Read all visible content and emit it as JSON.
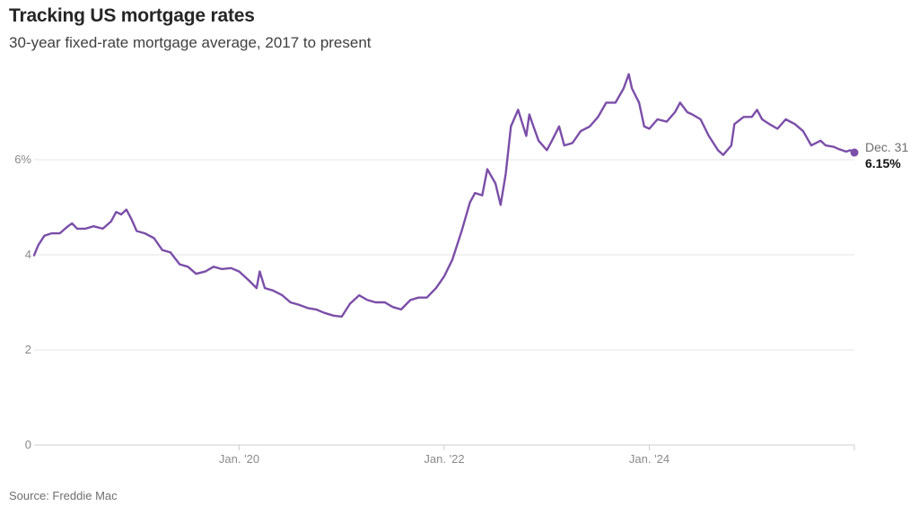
{
  "header": {
    "title": "Tracking US mortgage rates",
    "subtitle": "30-year fixed-rate mortgage average, 2017 to present"
  },
  "footer": {
    "source": "Source: Freddie Mac"
  },
  "colors": {
    "line": "#7b4ea8",
    "grid": "#e6e6e6",
    "axis": "#cfcfcf"
  },
  "chart_data": {
    "type": "line",
    "title": "Tracking US mortgage rates",
    "subtitle": "30-year fixed-rate mortgage average, 2017 to present",
    "xlabel": "",
    "ylabel": "",
    "xlim": [
      2018.0,
      2026.0
    ],
    "ylim": [
      0,
      8
    ],
    "y_ticks": [
      {
        "value": 0,
        "label": "0"
      },
      {
        "value": 2,
        "label": "2"
      },
      {
        "value": 4,
        "label": "4"
      },
      {
        "value": 6,
        "label": "6%"
      }
    ],
    "x_ticks": [
      {
        "value": 2020.0,
        "label": "Jan. '20"
      },
      {
        "value": 2022.0,
        "label": "Jan. '22"
      },
      {
        "value": 2024.0,
        "label": "Jan. '24"
      }
    ],
    "grid": true,
    "legend": "none",
    "series": [
      {
        "name": "30-year fixed-rate mortgage average",
        "x": [
          2018.0,
          2018.04,
          2018.1,
          2018.17,
          2018.25,
          2018.33,
          2018.37,
          2018.42,
          2018.5,
          2018.58,
          2018.67,
          2018.75,
          2018.8,
          2018.85,
          2018.9,
          2018.95,
          2019.0,
          2019.08,
          2019.17,
          2019.25,
          2019.33,
          2019.42,
          2019.5,
          2019.58,
          2019.67,
          2019.75,
          2019.83,
          2019.92,
          2020.0,
          2020.1,
          2020.17,
          2020.2,
          2020.25,
          2020.33,
          2020.42,
          2020.5,
          2020.58,
          2020.67,
          2020.75,
          2020.83,
          2020.92,
          2021.0,
          2021.08,
          2021.17,
          2021.25,
          2021.33,
          2021.42,
          2021.5,
          2021.58,
          2021.67,
          2021.75,
          2021.83,
          2021.92,
          2022.0,
          2022.08,
          2022.17,
          2022.25,
          2022.3,
          2022.37,
          2022.42,
          2022.5,
          2022.55,
          2022.6,
          2022.65,
          2022.72,
          2022.8,
          2022.83,
          2022.87,
          2022.92,
          2023.0,
          2023.05,
          2023.12,
          2023.17,
          2023.25,
          2023.33,
          2023.42,
          2023.5,
          2023.58,
          2023.67,
          2023.75,
          2023.8,
          2023.83,
          2023.9,
          2023.95,
          2024.0,
          2024.08,
          2024.17,
          2024.25,
          2024.3,
          2024.37,
          2024.42,
          2024.5,
          2024.58,
          2024.67,
          2024.72,
          2024.8,
          2024.83,
          2024.92,
          2025.0,
          2025.05,
          2025.1,
          2025.17,
          2025.25,
          2025.33,
          2025.42,
          2025.5,
          2025.58,
          2025.67,
          2025.72,
          2025.8,
          2025.85,
          2025.92,
          2025.96,
          2026.0
        ],
        "values": [
          3.99,
          4.2,
          4.4,
          4.45,
          4.45,
          4.6,
          4.66,
          4.55,
          4.55,
          4.6,
          4.55,
          4.7,
          4.9,
          4.85,
          4.95,
          4.75,
          4.5,
          4.45,
          4.35,
          4.1,
          4.05,
          3.8,
          3.75,
          3.6,
          3.65,
          3.75,
          3.7,
          3.72,
          3.65,
          3.45,
          3.3,
          3.65,
          3.3,
          3.25,
          3.15,
          3.0,
          2.95,
          2.88,
          2.85,
          2.78,
          2.72,
          2.7,
          2.97,
          3.15,
          3.05,
          3.0,
          3.0,
          2.9,
          2.85,
          3.05,
          3.1,
          3.1,
          3.3,
          3.55,
          3.9,
          4.5,
          5.1,
          5.3,
          5.25,
          5.8,
          5.5,
          5.05,
          5.7,
          6.7,
          7.05,
          6.5,
          6.95,
          6.7,
          6.4,
          6.2,
          6.4,
          6.7,
          6.3,
          6.35,
          6.6,
          6.7,
          6.9,
          7.2,
          7.2,
          7.5,
          7.8,
          7.5,
          7.2,
          6.7,
          6.65,
          6.85,
          6.8,
          7.0,
          7.2,
          7.0,
          6.95,
          6.85,
          6.5,
          6.2,
          6.1,
          6.3,
          6.75,
          6.9,
          6.9,
          7.05,
          6.85,
          6.75,
          6.65,
          6.85,
          6.75,
          6.6,
          6.3,
          6.4,
          6.3,
          6.27,
          6.22,
          6.17,
          6.2,
          6.15
        ]
      }
    ],
    "annotation": {
      "date_label": "Dec. 31",
      "value_label": "6.15%",
      "value": 6.15,
      "x": 2026.0
    }
  }
}
